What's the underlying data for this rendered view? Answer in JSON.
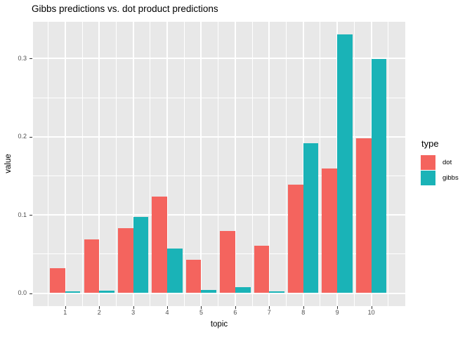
{
  "chart_data": {
    "type": "bar",
    "title": "Gibbs predictions vs. dot product predictions",
    "xlabel": "topic",
    "ylabel": "value",
    "categories": [
      "1",
      "2",
      "3",
      "4",
      "5",
      "6",
      "7",
      "8",
      "9",
      "10"
    ],
    "series": [
      {
        "name": "dot",
        "color": "#F4645E",
        "values": [
          0.032,
          0.069,
          0.083,
          0.123,
          0.043,
          0.079,
          0.061,
          0.139,
          0.159,
          0.198
        ]
      },
      {
        "name": "gibbs",
        "color": "#1AB3B7",
        "values": [
          0.002,
          0.003,
          0.097,
          0.057,
          0.004,
          0.008,
          0.002,
          0.192,
          0.331,
          0.299
        ]
      }
    ],
    "ylim": [
      -0.017,
      0.347
    ],
    "yticks": [
      0.0,
      0.1,
      0.2,
      0.3
    ],
    "ytick_labels": [
      "0.0",
      "0.1",
      "0.2",
      "0.3"
    ],
    "yticks_minor": [
      0.05,
      0.15,
      0.25
    ],
    "grid": "on",
    "legend_position": "right",
    "bar_group_mode": "dodge"
  },
  "legend": {
    "title": "type",
    "items": [
      {
        "label": "dot",
        "color": "#F4645E"
      },
      {
        "label": "gibbs",
        "color": "#1AB3B7"
      }
    ]
  },
  "colors": {
    "panel_bg": "#E8E8E8",
    "grid": "#FFFFFF",
    "tick": "#333333",
    "tick_label": "#4D4D4D",
    "background": "#FFFFFF"
  }
}
